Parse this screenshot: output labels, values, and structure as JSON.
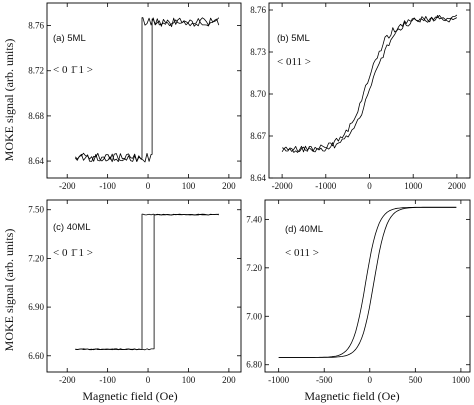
{
  "ylabel": "MOKE signal (arb. units)",
  "xlabel": "Magnetic field (Oe)",
  "chart_data": [
    {
      "type": "line",
      "panel_label": "(a) 5ML",
      "orientation": "< 0 1̄ 1 >",
      "xlim": [
        -250,
        230
      ],
      "ylim": [
        8.625,
        8.78
      ],
      "xticks": [
        "-200",
        "-100",
        "0",
        "100",
        "200"
      ],
      "yticks": [
        "8.64",
        "8.68",
        "8.72",
        "8.76"
      ],
      "xtick_values": [
        -200,
        -100,
        0,
        100,
        200
      ],
      "ytick_values": [
        8.64,
        8.68,
        8.72,
        8.76
      ],
      "loop": {
        "kind": "square",
        "x_min": -180,
        "x_max": 175,
        "y_low": 8.643,
        "y_high": 8.763,
        "switch_up": 10,
        "switch_down": -15,
        "noise": 0.004
      },
      "series": [
        {
          "x": [
            -180,
            -100,
            -15,
            -15,
            175
          ],
          "y": [
            8.643,
            8.643,
            8.643,
            8.763,
            8.763
          ]
        },
        {
          "x": [
            175,
            100,
            10,
            10,
            -180
          ],
          "y": [
            8.763,
            8.763,
            8.763,
            8.643,
            8.643
          ]
        }
      ]
    },
    {
      "type": "line",
      "panel_label": "(b) 5ML",
      "orientation": "< 011 >",
      "xlim": [
        -2300,
        2300
      ],
      "ylim": [
        8.64,
        8.765
      ],
      "xticks": [
        "-2000",
        "-1000",
        "0",
        "1000",
        "2000"
      ],
      "yticks": [
        "8.64",
        "8.67",
        "8.70",
        "8.73",
        "8.76"
      ],
      "xtick_values": [
        -2000,
        -1000,
        0,
        1000,
        2000
      ],
      "ytick_values": [
        8.64,
        8.67,
        8.7,
        8.73,
        8.76
      ],
      "loop": {
        "kind": "tanh",
        "x_min": -2000,
        "x_max": 2000,
        "center": 8.707,
        "amp": 0.047,
        "width": 520,
        "coercive": 60,
        "slope": 1.12e-06,
        "noise": 0.0025
      },
      "series": [
        {
          "x": [
            -2000,
            -1000,
            0,
            1000,
            2000
          ],
          "y": [
            8.659,
            8.678,
            8.705,
            8.737,
            8.754
          ]
        },
        {
          "x": [
            2000,
            1000,
            0,
            -1000,
            -2000
          ],
          "y": [
            8.754,
            8.735,
            8.709,
            8.676,
            8.659
          ]
        }
      ]
    },
    {
      "type": "line",
      "panel_label": "(c) 40ML",
      "orientation": "< 0 1̄ 1 >",
      "xlim": [
        -250,
        230
      ],
      "ylim": [
        6.5,
        7.56
      ],
      "xticks": [
        "-200",
        "-100",
        "0",
        "100",
        "200"
      ],
      "yticks": [
        "6.60",
        "6.90",
        "7.20",
        "7.50"
      ],
      "xtick_values": [
        -200,
        -100,
        0,
        100,
        200
      ],
      "ytick_values": [
        6.6,
        6.9,
        7.2,
        7.5
      ],
      "loop": {
        "kind": "square",
        "x_min": -180,
        "x_max": 175,
        "y_low": 6.64,
        "y_high": 7.47,
        "switch_up": 15,
        "switch_down": -15,
        "noise": 0.003
      },
      "series": [
        {
          "x": [
            -180,
            -15,
            -15,
            175
          ],
          "y": [
            6.64,
            6.64,
            7.47,
            7.47
          ]
        },
        {
          "x": [
            175,
            15,
            15,
            -180
          ],
          "y": [
            7.47,
            7.47,
            6.64,
            6.64
          ]
        }
      ]
    },
    {
      "type": "line",
      "panel_label": "(d) 40ML",
      "orientation": "< 011 >",
      "xlim": [
        -1150,
        1100
      ],
      "ylim": [
        6.77,
        7.48
      ],
      "xticks": [
        "-1000",
        "-500",
        "0",
        "500",
        "1000"
      ],
      "yticks": [
        "6.80",
        "7.00",
        "7.20",
        "7.40"
      ],
      "xtick_values": [
        -1000,
        -500,
        0,
        500,
        1000
      ],
      "ytick_values": [
        6.8,
        7.0,
        7.2,
        7.4
      ],
      "loop": {
        "kind": "tanh",
        "x_min": -1000,
        "x_max": 950,
        "center": 7.14,
        "amp": 0.31,
        "width": 140,
        "coercive": 45,
        "slope": 0.0,
        "noise": 0.0
      },
      "series": [
        {
          "x": [
            -1000,
            -500,
            0,
            500,
            950
          ],
          "y": [
            6.84,
            6.86,
            7.15,
            7.42,
            7.45
          ]
        },
        {
          "x": [
            950,
            500,
            0,
            -500,
            -1000
          ],
          "y": [
            7.45,
            7.41,
            7.09,
            6.86,
            6.84
          ]
        }
      ]
    }
  ]
}
